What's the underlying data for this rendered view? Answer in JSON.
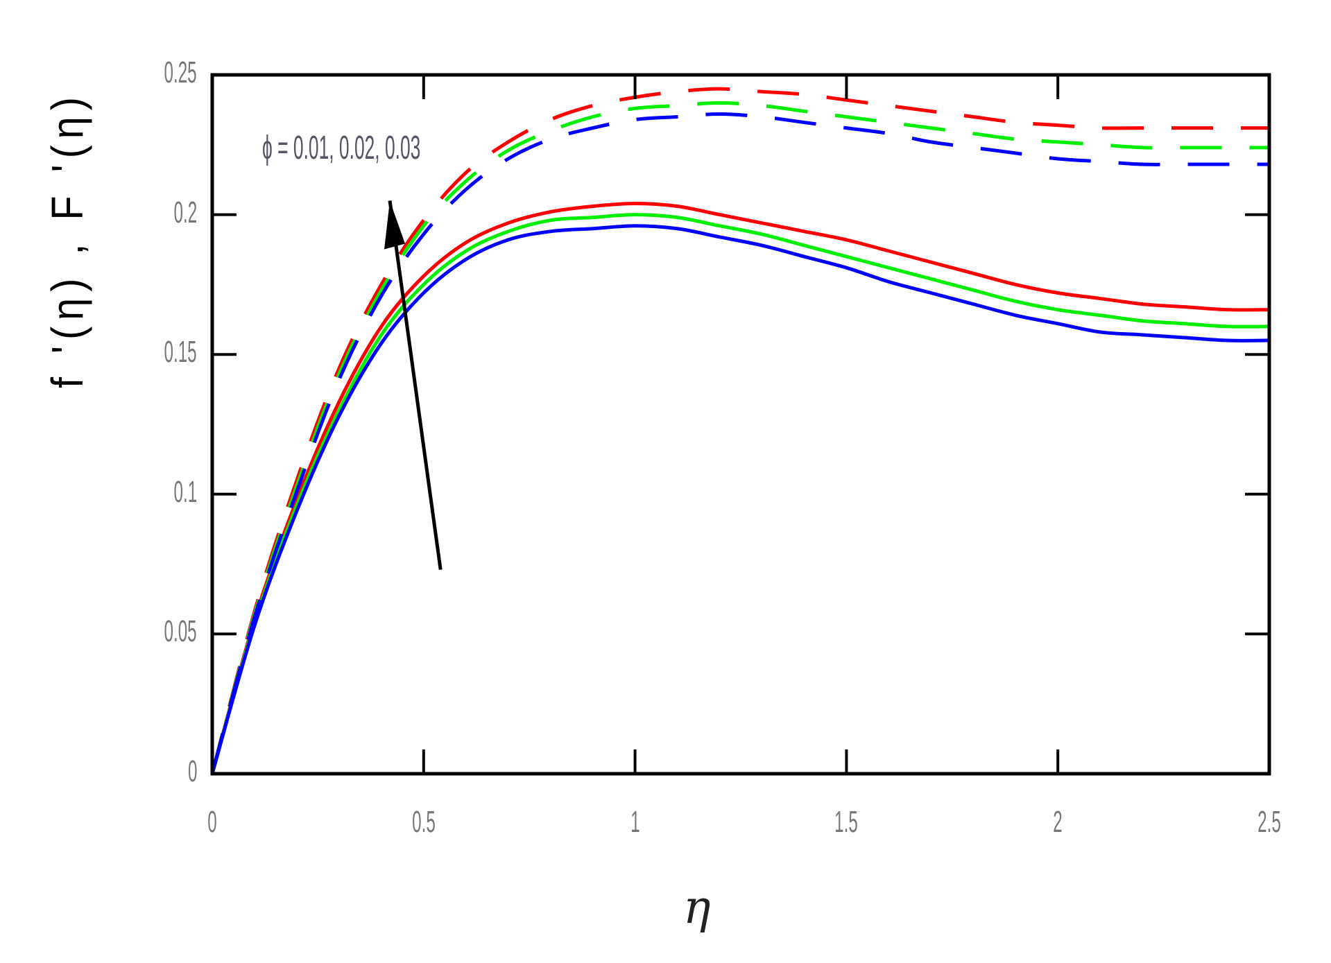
{
  "chart_data": {
    "type": "line",
    "title": "",
    "xlabel": "η",
    "ylabel": "f '(η) , F '(η)",
    "xlim": [
      0,
      2.5
    ],
    "ylim": [
      0,
      0.25
    ],
    "xticks": [
      "0",
      "0.5",
      "1",
      "1.5",
      "2",
      "2.5"
    ],
    "yticks": [
      "0",
      "0.05",
      "0.1",
      "0.15",
      "0.2",
      "0.25"
    ],
    "grid": false,
    "legend": null,
    "annotation": "ϕ = 0.01, 0.02, 0.03",
    "x": [
      0,
      0.1,
      0.2,
      0.3,
      0.4,
      0.5,
      0.6,
      0.7,
      0.8,
      0.9,
      1.0,
      1.1,
      1.2,
      1.3,
      1.4,
      1.5,
      1.6,
      1.7,
      1.8,
      1.9,
      2.0,
      2.1,
      2.2,
      2.3,
      2.4,
      2.5
    ],
    "series": [
      {
        "name": "f'(η) ϕ=0.01",
        "style": "solid",
        "color": "#ff0000",
        "values": [
          0,
          0.055,
          0.098,
          0.133,
          0.16,
          0.178,
          0.19,
          0.197,
          0.201,
          0.203,
          0.204,
          0.203,
          0.2,
          0.197,
          0.194,
          0.191,
          0.187,
          0.183,
          0.179,
          0.175,
          0.172,
          0.17,
          0.168,
          0.167,
          0.166,
          0.166
        ]
      },
      {
        "name": "f'(η) ϕ=0.02",
        "style": "solid",
        "color": "#00ee00",
        "values": [
          0,
          0.054,
          0.096,
          0.13,
          0.157,
          0.175,
          0.187,
          0.194,
          0.198,
          0.199,
          0.2,
          0.199,
          0.196,
          0.193,
          0.189,
          0.185,
          0.181,
          0.177,
          0.173,
          0.169,
          0.166,
          0.164,
          0.162,
          0.161,
          0.16,
          0.16
        ]
      },
      {
        "name": "f'(η) ϕ=0.03",
        "style": "solid",
        "color": "#0000ff",
        "values": [
          0,
          0.053,
          0.094,
          0.128,
          0.154,
          0.172,
          0.184,
          0.191,
          0.194,
          0.195,
          0.196,
          0.195,
          0.192,
          0.189,
          0.185,
          0.181,
          0.176,
          0.172,
          0.168,
          0.164,
          0.161,
          0.158,
          0.157,
          0.156,
          0.155,
          0.155
        ]
      },
      {
        "name": "F'(η) ϕ=0.01",
        "style": "dashed",
        "color": "#ff0000",
        "values": [
          0,
          0.058,
          0.105,
          0.145,
          0.175,
          0.198,
          0.215,
          0.226,
          0.234,
          0.239,
          0.242,
          0.244,
          0.245,
          0.244,
          0.243,
          0.241,
          0.239,
          0.237,
          0.235,
          0.233,
          0.232,
          0.231,
          0.231,
          0.231,
          0.231,
          0.231
        ]
      },
      {
        "name": "F'(η) ϕ=0.02",
        "style": "dashed",
        "color": "#00ee00",
        "values": [
          0,
          0.057,
          0.103,
          0.143,
          0.173,
          0.196,
          0.212,
          0.223,
          0.23,
          0.235,
          0.238,
          0.239,
          0.24,
          0.239,
          0.237,
          0.235,
          0.233,
          0.231,
          0.229,
          0.227,
          0.226,
          0.225,
          0.224,
          0.224,
          0.224,
          0.224
        ]
      },
      {
        "name": "F'(η) ϕ=0.03",
        "style": "dashed",
        "color": "#0000ff",
        "values": [
          0,
          0.056,
          0.101,
          0.141,
          0.171,
          0.193,
          0.209,
          0.22,
          0.227,
          0.231,
          0.234,
          0.235,
          0.236,
          0.235,
          0.233,
          0.231,
          0.229,
          0.226,
          0.224,
          0.222,
          0.22,
          0.219,
          0.218,
          0.218,
          0.218,
          0.218
        ]
      }
    ],
    "arrow": {
      "from": [
        0.54,
        0.073
      ],
      "to": [
        0.42,
        0.205
      ]
    }
  }
}
